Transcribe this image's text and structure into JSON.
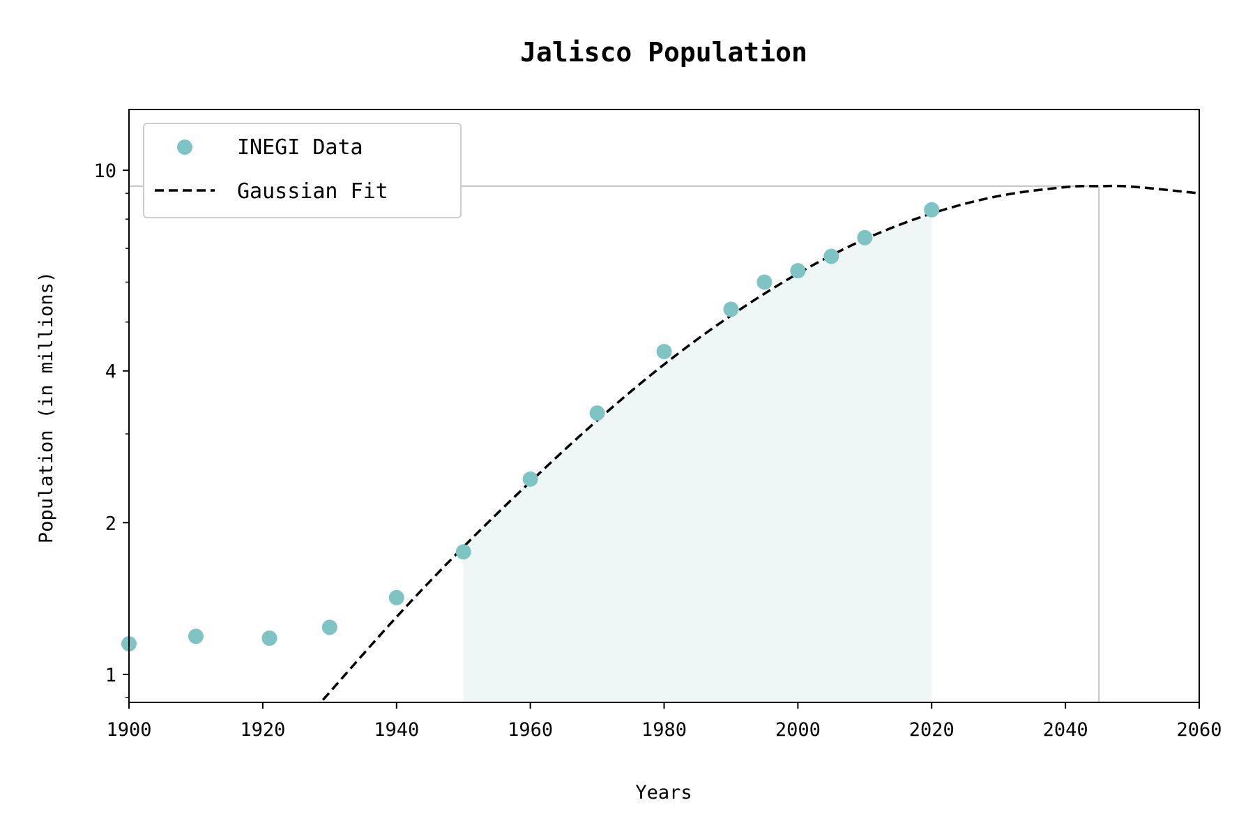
{
  "chart_data": {
    "type": "scatter",
    "title": "Jalisco Population",
    "xlabel": "Years",
    "ylabel": "Population (in millions)",
    "xlim": [
      1900,
      2060
    ],
    "ylim": [
      0.88,
      13.2
    ],
    "yscale": "log",
    "x_ticks": [
      1900,
      1920,
      1940,
      1960,
      1980,
      2000,
      2020,
      2040,
      2060
    ],
    "y_ticks": [
      1,
      2,
      4,
      10
    ],
    "legend_position": "top-left",
    "grid": false,
    "series": [
      {
        "name": "INEGI Data",
        "kind": "scatter",
        "color": "#7fc4c4",
        "x": [
          1900,
          1910,
          1921,
          1930,
          1940,
          1950,
          1960,
          1970,
          1980,
          1990,
          1995,
          2000,
          2005,
          2010,
          2020
        ],
        "y": [
          1.15,
          1.19,
          1.18,
          1.24,
          1.42,
          1.75,
          2.44,
          3.3,
          4.37,
          5.3,
          6.0,
          6.32,
          6.75,
          7.35,
          8.35
        ]
      },
      {
        "name": "Gaussian Fit",
        "kind": "line",
        "style": "dashed",
        "color": "#000000",
        "peak_x": 2045,
        "peak_y": 9.3,
        "x": [
          1929,
          1940,
          1950,
          1960,
          1970,
          1980,
          1990,
          2000,
          2010,
          2020,
          2030,
          2040,
          2045,
          2050,
          2060
        ],
        "y": [
          0.89,
          1.3,
          1.79,
          2.41,
          3.19,
          4.12,
          5.15,
          6.24,
          7.3,
          8.21,
          8.89,
          9.26,
          9.3,
          9.28,
          9.0
        ]
      }
    ],
    "shaded_region": {
      "x": [
        1950,
        2020
      ],
      "color": "#eef7f6"
    },
    "reference_lines": {
      "hline_y": 9.3,
      "vline_x": 2045,
      "color": "#cccccc"
    }
  }
}
